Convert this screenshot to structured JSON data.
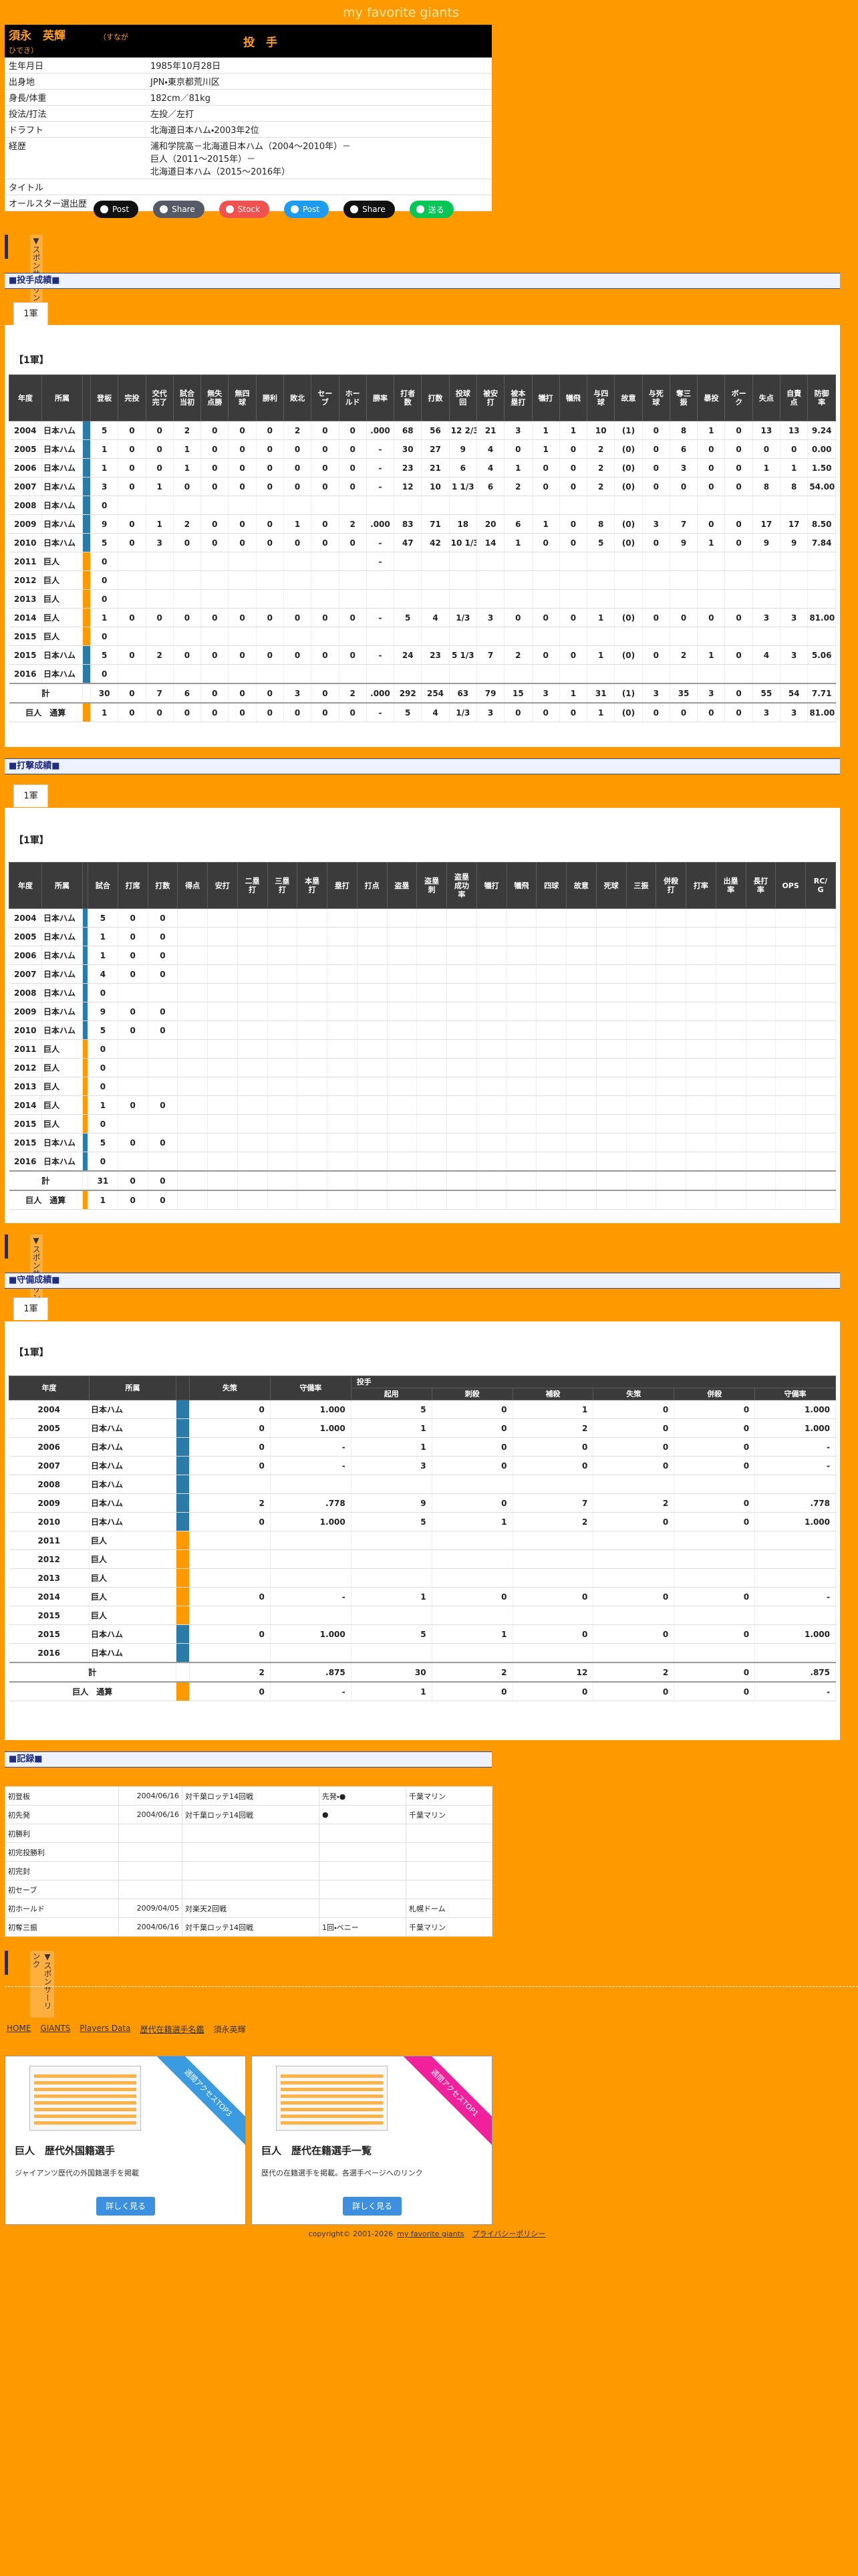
{
  "site_title": "my favorite giants",
  "profile": {
    "name": "須永　英輝",
    "kana": "（すなが　ひでき）",
    "position": "投　手",
    "rows": [
      {
        "label": "生年月日",
        "value": [
          "1985年10月28日"
        ]
      },
      {
        "label": "出身地",
        "value": [
          "JPN・東京都荒川区"
        ]
      },
      {
        "label": "身長/体重",
        "value": [
          "182cm／81kg"
        ]
      },
      {
        "label": "投法/打法",
        "value": [
          "左投／左打"
        ]
      },
      {
        "label": "ドラフト",
        "value": [
          "北海道日本ハム・2003年2位"
        ]
      },
      {
        "label": "経歴",
        "value": [
          "浦和学院高－北海道日本ハム（2004〜2010年）－",
          "巨人（2011〜2015年）－",
          "北海道日本ハム（2015〜2016年）"
        ]
      },
      {
        "label": "タイトル"
      },
      {
        "label": "オールスター選出歴"
      }
    ]
  },
  "share_buttons": [
    {
      "label": "Post",
      "color": "#111111"
    },
    {
      "label": "Share",
      "color": "#555a66"
    },
    {
      "label": "Stock",
      "color": "#f0524f"
    },
    {
      "label": "Post",
      "color": "#1d9bf0"
    },
    {
      "label": "Share",
      "color": "#111111"
    },
    {
      "label": "送る",
      "color": "#06c755"
    }
  ],
  "sponsor_label": "▼スポンサーリンク",
  "team_colors": {
    "fighters": "#2b7ba8",
    "giants": "#ff9900"
  },
  "sections": [
    {
      "title": "■投手成績■",
      "tab": "1軍",
      "heading": "【1軍】",
      "table": {
        "headers": [
          "年度",
          "所属",
          "登板",
          "完投",
          "交代完了",
          "試合当初",
          "無失点勝",
          "無四球",
          "勝利",
          "敗北",
          "セーブ",
          "ホールド",
          "勝率",
          "打者数",
          "打数",
          "投球回",
          "被安打",
          "被本塁打",
          "犠打",
          "犠飛",
          "与四球",
          "故意",
          "与死球",
          "奪三振",
          "暴投",
          "ボーク",
          "失点",
          "自責点",
          "防御率"
        ],
        "rows": [
          {
            "year": "2004",
            "team": "日本ハム",
            "bar": "fighters",
            "cells": [
              "5",
              "0",
              "0",
              "2",
              "0",
              "0",
              "0",
              "2",
              "0",
              "0",
              ".000",
              "68",
              "56",
              "12 2/3",
              "21",
              "3",
              "1",
              "1",
              "10",
              "(1)",
              "0",
              "8",
              "1",
              "0",
              "13",
              "13",
              "9.24"
            ]
          },
          {
            "year": "2005",
            "team": "日本ハム",
            "bar": "fighters",
            "cells": [
              "1",
              "0",
              "0",
              "1",
              "0",
              "0",
              "0",
              "0",
              "0",
              "0",
              "-",
              "30",
              "27",
              "9",
              "4",
              "0",
              "1",
              "0",
              "2",
              "(0)",
              "0",
              "6",
              "0",
              "0",
              "0",
              "0",
              "0.00"
            ]
          },
          {
            "year": "2006",
            "team": "日本ハム",
            "bar": "fighters",
            "cells": [
              "1",
              "0",
              "0",
              "1",
              "0",
              "0",
              "0",
              "0",
              "0",
              "0",
              "-",
              "23",
              "21",
              "6",
              "4",
              "1",
              "0",
              "0",
              "2",
              "(0)",
              "0",
              "3",
              "0",
              "0",
              "1",
              "1",
              "1.50"
            ]
          },
          {
            "year": "2007",
            "team": "日本ハム",
            "bar": "fighters",
            "cells": [
              "3",
              "0",
              "1",
              "0",
              "0",
              "0",
              "0",
              "0",
              "0",
              "0",
              "-",
              "12",
              "10",
              "1 1/3",
              "6",
              "2",
              "0",
              "0",
              "2",
              "(0)",
              "0",
              "0",
              "0",
              "0",
              "8",
              "8",
              "54.00"
            ]
          },
          {
            "year": "2008",
            "team": "日本ハム",
            "bar": "fighters",
            "cells": [
              "0"
            ]
          },
          {
            "year": "2009",
            "team": "日本ハム",
            "bar": "fighters",
            "cells": [
              "9",
              "0",
              "1",
              "2",
              "0",
              "0",
              "0",
              "1",
              "0",
              "2",
              ".000",
              "83",
              "71",
              "18",
              "20",
              "6",
              "1",
              "0",
              "8",
              "(0)",
              "3",
              "7",
              "0",
              "0",
              "17",
              "17",
              "8.50"
            ]
          },
          {
            "year": "2010",
            "team": "日本ハム",
            "bar": "fighters",
            "cells": [
              "5",
              "0",
              "3",
              "0",
              "0",
              "0",
              "0",
              "0",
              "0",
              "0",
              "-",
              "47",
              "42",
              "10 1/3",
              "14",
              "1",
              "0",
              "0",
              "5",
              "(0)",
              "0",
              "9",
              "1",
              "0",
              "9",
              "9",
              "7.84"
            ]
          },
          {
            "year": "2011",
            "team": "巨人",
            "bar": "giants",
            "cells": [
              "0",
              null,
              null,
              null,
              null,
              null,
              null,
              null,
              null,
              null,
              "-"
            ]
          },
          {
            "year": "2012",
            "team": "巨人",
            "bar": "giants",
            "cells": [
              "0"
            ]
          },
          {
            "year": "2013",
            "team": "巨人",
            "bar": "giants",
            "cells": [
              "0"
            ]
          },
          {
            "year": "2014",
            "team": "巨人",
            "bar": "giants",
            "cells": [
              "1",
              "0",
              "0",
              "0",
              "0",
              "0",
              "0",
              "0",
              "0",
              "0",
              "-",
              "5",
              "4",
              "1/3",
              "3",
              "0",
              "0",
              "0",
              "1",
              "(0)",
              "0",
              "0",
              "0",
              "0",
              "3",
              "3",
              "81.00"
            ]
          },
          {
            "year": "2015",
            "team": "巨人",
            "bar": "giants",
            "cells": [
              "0"
            ]
          },
          {
            "year": "2015",
            "team": "日本ハム",
            "bar": "fighters",
            "cells": [
              "5",
              "0",
              "2",
              "0",
              "0",
              "0",
              "0",
              "0",
              "0",
              "0",
              "-",
              "24",
              "23",
              "5 1/3",
              "7",
              "2",
              "0",
              "0",
              "1",
              "(0)",
              "0",
              "2",
              "1",
              "0",
              "4",
              "3",
              "5.06"
            ]
          },
          {
            "year": "2016",
            "team": "日本ハム",
            "bar": "fighters",
            "cells": [
              "0"
            ]
          },
          {
            "label": "計",
            "cells": [
              "30",
              "0",
              "7",
              "6",
              "0",
              "0",
              "0",
              "3",
              "0",
              "2",
              ".000",
              "292",
              "254",
              "63",
              "79",
              "15",
              "3",
              "1",
              "31",
              "(1)",
              "3",
              "35",
              "3",
              "0",
              "55",
              "54",
              "7.71"
            ]
          },
          {
            "label": "巨人　通算",
            "bar": "giants",
            "cells": [
              "1",
              "0",
              "0",
              "0",
              "0",
              "0",
              "0",
              "0",
              "0",
              "0",
              "-",
              "5",
              "4",
              "1/3",
              "3",
              "0",
              "0",
              "0",
              "1",
              "(0)",
              "0",
              "0",
              "0",
              "0",
              "3",
              "3",
              "81.00"
            ]
          }
        ]
      }
    },
    {
      "title": "■打撃成績■",
      "tab": "1軍",
      "heading": "【1軍】",
      "table": {
        "headers": [
          "年度",
          "所属",
          "試合",
          "打席",
          "打数",
          "得点",
          "安打",
          "二塁打",
          "三塁打",
          "本塁打",
          "塁打",
          "打点",
          "盗塁",
          "盗塁刺",
          "盗塁成功率",
          "犠打",
          "犠飛",
          "四球",
          "故意",
          "死球",
          "三振",
          "併殺打",
          "打率",
          "出塁率",
          "長打率",
          "OPS",
          "RC/G"
        ],
        "rows": [
          {
            "year": "2004",
            "team": "日本ハム",
            "bar": "fighters",
            "cells": [
              "5",
              "0",
              "0"
            ]
          },
          {
            "year": "2005",
            "team": "日本ハム",
            "bar": "fighters",
            "cells": [
              "1",
              "0",
              "0"
            ]
          },
          {
            "year": "2006",
            "team": "日本ハム",
            "bar": "fighters",
            "cells": [
              "1",
              "0",
              "0"
            ]
          },
          {
            "year": "2007",
            "team": "日本ハム",
            "bar": "fighters",
            "cells": [
              "4",
              "0",
              "0"
            ]
          },
          {
            "year": "2008",
            "team": "日本ハム",
            "bar": "fighters",
            "cells": [
              "0"
            ]
          },
          {
            "year": "2009",
            "team": "日本ハム",
            "bar": "fighters",
            "cells": [
              "9",
              "0",
              "0"
            ]
          },
          {
            "year": "2010",
            "team": "日本ハム",
            "bar": "fighters",
            "cells": [
              "5",
              "0",
              "0"
            ]
          },
          {
            "year": "2011",
            "team": "巨人",
            "bar": "giants",
            "cells": [
              "0"
            ]
          },
          {
            "year": "2012",
            "team": "巨人",
            "bar": "giants",
            "cells": [
              "0"
            ]
          },
          {
            "year": "2013",
            "team": "巨人",
            "bar": "giants",
            "cells": [
              "0"
            ]
          },
          {
            "year": "2014",
            "team": "巨人",
            "bar": "giants",
            "cells": [
              "1",
              "0",
              "0"
            ]
          },
          {
            "year": "2015",
            "team": "巨人",
            "bar": "giants",
            "cells": [
              "0"
            ]
          },
          {
            "year": "2015",
            "team": "日本ハム",
            "bar": "fighters",
            "cells": [
              "5",
              "0",
              "0"
            ]
          },
          {
            "year": "2016",
            "team": "日本ハム",
            "bar": "fighters",
            "cells": [
              "0"
            ]
          },
          {
            "label": "計",
            "cells": [
              "31",
              "0",
              "0"
            ]
          },
          {
            "label": "巨人　通算",
            "bar": "giants",
            "cells": [
              "1",
              "0",
              "0"
            ]
          }
        ]
      }
    },
    {
      "title": "■守備成績■",
      "tab": "1軍",
      "heading": "【1軍】",
      "table": {
        "headers": [
          "年度",
          "所属",
          "失策",
          "守備率"
        ],
        "group": "投手",
        "subheaders": [
          "起用",
          "刺殺",
          "補殺",
          "失策",
          "併殺",
          "守備率"
        ],
        "rows": [
          {
            "year": "2004",
            "team": "日本ハム",
            "bar": "fighters",
            "cells": [
              "0",
              "1.000",
              "5",
              "0",
              "1",
              "0",
              "0",
              "1.000"
            ]
          },
          {
            "year": "2005",
            "team": "日本ハム",
            "bar": "fighters",
            "cells": [
              "0",
              "1.000",
              "1",
              "0",
              "2",
              "0",
              "0",
              "1.000"
            ]
          },
          {
            "year": "2006",
            "team": "日本ハム",
            "bar": "fighters",
            "cells": [
              "0",
              "-",
              "1",
              "0",
              "0",
              "0",
              "0",
              "-"
            ]
          },
          {
            "year": "2007",
            "team": "日本ハム",
            "bar": "fighters",
            "cells": [
              "0",
              "-",
              "3",
              "0",
              "0",
              "0",
              "0",
              "-"
            ]
          },
          {
            "year": "2008",
            "team": "日本ハム",
            "bar": "fighters",
            "cells": []
          },
          {
            "year": "2009",
            "team": "日本ハム",
            "bar": "fighters",
            "cells": [
              "2",
              ".778",
              "9",
              "0",
              "7",
              "2",
              "0",
              ".778"
            ]
          },
          {
            "year": "2010",
            "team": "日本ハム",
            "bar": "fighters",
            "cells": [
              "0",
              "1.000",
              "5",
              "1",
              "2",
              "0",
              "0",
              "1.000"
            ]
          },
          {
            "year": "2011",
            "team": "巨人",
            "bar": "giants",
            "cells": []
          },
          {
            "year": "2012",
            "team": "巨人",
            "bar": "giants",
            "cells": []
          },
          {
            "year": "2013",
            "team": "巨人",
            "bar": "giants",
            "cells": []
          },
          {
            "year": "2014",
            "team": "巨人",
            "bar": "giants",
            "cells": [
              "0",
              "-",
              "1",
              "0",
              "0",
              "0",
              "0",
              "-"
            ]
          },
          {
            "year": "2015",
            "team": "巨人",
            "bar": "giants",
            "cells": []
          },
          {
            "year": "2015",
            "team": "日本ハム",
            "bar": "fighters",
            "cells": [
              "0",
              "1.000",
              "5",
              "1",
              "0",
              "0",
              "0",
              "1.000"
            ]
          },
          {
            "year": "2016",
            "team": "日本ハム",
            "bar": "fighters",
            "cells": []
          },
          {
            "label": "計",
            "cells": [
              "2",
              ".875",
              "30",
              "2",
              "12",
              "2",
              "0",
              ".875"
            ]
          },
          {
            "label": "巨人　通算",
            "bar": "giants",
            "cells": [
              "0",
              "-",
              "1",
              "0",
              "0",
              "0",
              "0",
              "-"
            ]
          }
        ]
      }
    }
  ],
  "records": {
    "title": "■記録■",
    "rows": [
      [
        "初登板",
        "2004/06/16",
        "対千葉ロッテ14回戦",
        "先発・●",
        "千葉マリン"
      ],
      [
        "初先発",
        "2004/06/16",
        "対千葉ロッテ14回戦",
        "●",
        "千葉マリン"
      ],
      [
        "初勝利"
      ],
      [
        "初完投勝利"
      ],
      [
        "初完封"
      ],
      [
        "初セーブ"
      ],
      [
        "初ホールド",
        "2009/04/05",
        "対楽天2回戦",
        null,
        "札幌ドーム"
      ],
      [
        "初奪三振",
        "2004/06/16",
        "対千葉ロッテ14回戦",
        "1回・ベニー",
        "千葉マリン"
      ]
    ]
  },
  "breadcrumb": [
    "HOME",
    "GIANTS",
    "Players Data",
    "歴代在籍選手名鑑",
    "須永英輝"
  ],
  "cards": [
    {
      "ribbon": "週間アクセスTOP3",
      "ribbon_color": "#3b9be0",
      "title": "巨人　歴代外国籍選手",
      "description": "ジャイアンツ歴代の外国籍選手を掲載",
      "button": "詳しく見る"
    },
    {
      "ribbon": "週間アクセスTOP1",
      "ribbon_color": "#f0219a",
      "title": "巨人　歴代在籍選手一覧",
      "description": "歴代の在籍選手を掲載。各選手ページへのリンク",
      "button": "詳しく見る"
    }
  ],
  "footer": {
    "copyright": "copyright© 2001-2026",
    "site": "my favorite giants",
    "privacy": "プライバシーポリシー"
  }
}
